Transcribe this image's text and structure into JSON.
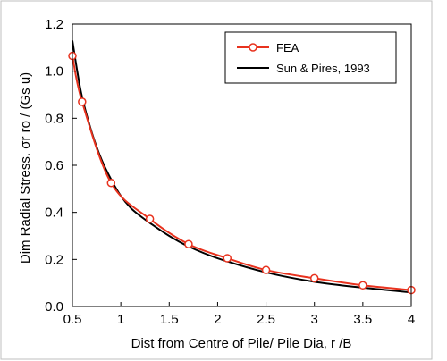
{
  "chart_data": {
    "type": "line",
    "xlabel": "Dist from Centre of Pile/ Pile Dia, r /B",
    "ylabel": "Dim Radial Stress. σr ro / (Gs u)",
    "xlim": [
      0.5,
      4
    ],
    "ylim": [
      0,
      1.2
    ],
    "x_ticks": [
      "0.5",
      "1",
      "1.5",
      "2",
      "2.5",
      "3",
      "3.5",
      "4"
    ],
    "y_ticks": [
      "0.0",
      "0.2",
      "0.4",
      "0.6",
      "0.8",
      "1.0",
      "1.2"
    ],
    "grid": false,
    "legend_position": "top-right",
    "series": [
      {
        "name": "FEA",
        "color": "#e8321e",
        "marker": "open-circle",
        "x": [
          0.5,
          0.6,
          0.9,
          1.3,
          1.7,
          2.1,
          2.5,
          3.0,
          3.5,
          4.0
        ],
        "y": [
          1.065,
          0.87,
          0.525,
          0.372,
          0.265,
          0.205,
          0.155,
          0.12,
          0.09,
          0.07
        ]
      },
      {
        "name": "Sun & Pires, 1993",
        "color": "#000000",
        "marker": "none",
        "x": [
          0.5,
          0.55,
          0.6,
          0.7,
          0.8,
          0.9,
          1.0,
          1.1,
          1.2,
          1.3,
          1.5,
          1.7,
          2.0,
          2.5,
          3.0,
          3.5,
          4.0
        ],
        "y": [
          1.13,
          1.0,
          0.89,
          0.74,
          0.625,
          0.54,
          0.47,
          0.42,
          0.385,
          0.355,
          0.3,
          0.255,
          0.205,
          0.145,
          0.105,
          0.08,
          0.06
        ]
      }
    ]
  }
}
